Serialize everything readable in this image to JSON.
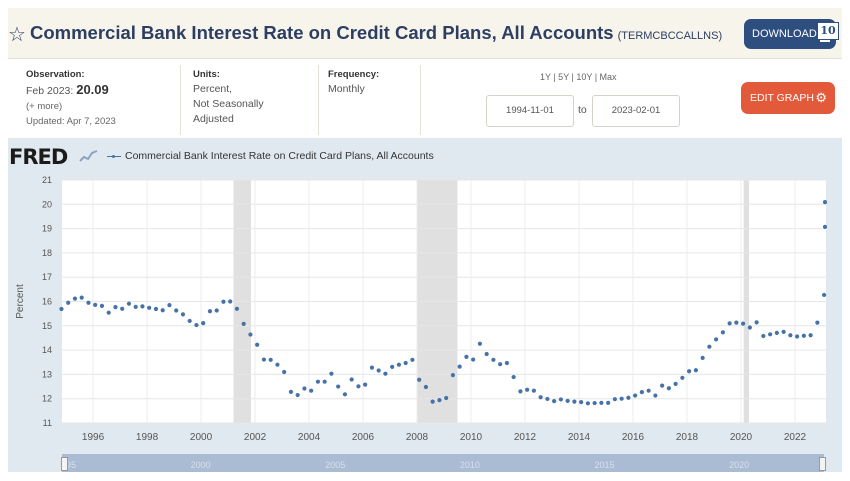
{
  "header": {
    "title": "Commercial Bank Interest Rate on Credit Card Plans, All Accounts",
    "series_id": "(TERMCBCCALLNS)",
    "download_label": "DOWNLOAD",
    "badge": "10"
  },
  "meta": {
    "observation_label": "Observation:",
    "observation_date": "Feb 2023:",
    "observation_value": "20.09",
    "more": "(+ more)",
    "updated": "Updated: Apr 7, 2023",
    "units_label": "Units:",
    "units_lines": [
      "Percent,",
      "Not Seasonally",
      "Adjusted"
    ],
    "frequency_label": "Frequency:",
    "frequency_value": "Monthly",
    "ranges": "1Y | 5Y | 10Y | Max",
    "start_date": "1994-11-01",
    "to_label": "to",
    "end_date": "2023-02-01",
    "edit_label": "EDIT GRAPH"
  },
  "chart": {
    "logo": "FRED",
    "legend": "Commercial Bank Interest Rate on Credit Card Plans, All Accounts"
  },
  "chart_data": {
    "type": "scatter",
    "title": "",
    "ylabel": "Percent",
    "xlabel": "",
    "xlim": [
      1994.85,
      2023.15
    ],
    "ylim": [
      11,
      21
    ],
    "yticks": [
      11,
      12,
      13,
      14,
      15,
      16,
      17,
      18,
      19,
      20,
      21
    ],
    "xticks": [
      "1996",
      "1998",
      "2000",
      "2002",
      "2004",
      "2006",
      "2008",
      "2010",
      "2012",
      "2014",
      "2016",
      "2018",
      "2020",
      "2022"
    ],
    "recessions": [
      [
        2001.2,
        2001.85
      ],
      [
        2008.0,
        2009.5
      ],
      [
        2020.1,
        2020.3
      ]
    ],
    "series": [
      {
        "name": "Commercial Bank Interest Rate on Credit Card Plans, All Accounts",
        "color": "#4572a7",
        "points": [
          [
            1994.83,
            15.69
          ],
          [
            1995.08,
            15.95
          ],
          [
            1995.33,
            16.12
          ],
          [
            1995.58,
            16.16
          ],
          [
            1995.83,
            15.95
          ],
          [
            1996.08,
            15.86
          ],
          [
            1996.33,
            15.82
          ],
          [
            1996.58,
            15.54
          ],
          [
            1996.83,
            15.77
          ],
          [
            1997.08,
            15.7
          ],
          [
            1997.33,
            15.91
          ],
          [
            1997.58,
            15.78
          ],
          [
            1997.83,
            15.8
          ],
          [
            1998.08,
            15.74
          ],
          [
            1998.33,
            15.69
          ],
          [
            1998.58,
            15.64
          ],
          [
            1998.83,
            15.85
          ],
          [
            1999.08,
            15.63
          ],
          [
            1999.33,
            15.47
          ],
          [
            1999.58,
            15.2
          ],
          [
            1999.83,
            15.03
          ],
          [
            2000.08,
            15.11
          ],
          [
            2000.33,
            15.6
          ],
          [
            2000.58,
            15.63
          ],
          [
            2000.83,
            15.99
          ],
          [
            2001.08,
            16.0
          ],
          [
            2001.33,
            15.7
          ],
          [
            2001.58,
            15.08
          ],
          [
            2001.83,
            14.64
          ],
          [
            2002.08,
            14.22
          ],
          [
            2002.33,
            13.61
          ],
          [
            2002.58,
            13.6
          ],
          [
            2002.83,
            13.4
          ],
          [
            2003.08,
            13.1
          ],
          [
            2003.33,
            12.28
          ],
          [
            2003.58,
            12.15
          ],
          [
            2003.83,
            12.42
          ],
          [
            2004.08,
            12.33
          ],
          [
            2004.33,
            12.7
          ],
          [
            2004.58,
            12.7
          ],
          [
            2004.83,
            13.03
          ],
          [
            2005.08,
            12.5
          ],
          [
            2005.33,
            12.18
          ],
          [
            2005.58,
            12.79
          ],
          [
            2005.83,
            12.51
          ],
          [
            2006.08,
            12.58
          ],
          [
            2006.33,
            13.28
          ],
          [
            2006.58,
            13.16
          ],
          [
            2006.83,
            13.03
          ],
          [
            2007.08,
            13.31
          ],
          [
            2007.33,
            13.4
          ],
          [
            2007.58,
            13.47
          ],
          [
            2007.83,
            13.6
          ],
          [
            2008.08,
            12.78
          ],
          [
            2008.33,
            12.48
          ],
          [
            2008.58,
            11.88
          ],
          [
            2008.83,
            11.94
          ],
          [
            2009.08,
            12.03
          ],
          [
            2009.33,
            12.97
          ],
          [
            2009.58,
            13.32
          ],
          [
            2009.83,
            13.72
          ],
          [
            2010.08,
            13.61
          ],
          [
            2010.33,
            14.26
          ],
          [
            2010.58,
            13.84
          ],
          [
            2010.83,
            13.6
          ],
          [
            2011.08,
            13.42
          ],
          [
            2011.33,
            13.47
          ],
          [
            2011.58,
            12.89
          ],
          [
            2011.83,
            12.3
          ],
          [
            2012.08,
            12.37
          ],
          [
            2012.33,
            12.33
          ],
          [
            2012.58,
            12.06
          ],
          [
            2012.83,
            11.99
          ],
          [
            2013.08,
            11.9
          ],
          [
            2013.33,
            11.97
          ],
          [
            2013.58,
            11.91
          ],
          [
            2013.83,
            11.88
          ],
          [
            2014.08,
            11.86
          ],
          [
            2014.33,
            11.81
          ],
          [
            2014.58,
            11.82
          ],
          [
            2014.83,
            11.83
          ],
          [
            2015.08,
            11.83
          ],
          [
            2015.33,
            11.98
          ],
          [
            2015.58,
            12.0
          ],
          [
            2015.83,
            12.04
          ],
          [
            2016.08,
            12.13
          ],
          [
            2016.33,
            12.27
          ],
          [
            2016.58,
            12.33
          ],
          [
            2016.83,
            12.13
          ],
          [
            2017.08,
            12.54
          ],
          [
            2017.33,
            12.43
          ],
          [
            2017.58,
            12.61
          ],
          [
            2017.83,
            12.86
          ],
          [
            2018.08,
            13.13
          ],
          [
            2018.33,
            13.17
          ],
          [
            2018.58,
            13.68
          ],
          [
            2018.83,
            14.14
          ],
          [
            2019.08,
            14.44
          ],
          [
            2019.33,
            14.73
          ],
          [
            2019.58,
            15.1
          ],
          [
            2019.83,
            15.13
          ],
          [
            2020.08,
            15.09
          ],
          [
            2020.33,
            14.93
          ],
          [
            2020.58,
            15.14
          ],
          [
            2020.83,
            14.58
          ],
          [
            2021.08,
            14.65
          ],
          [
            2021.33,
            14.71
          ],
          [
            2021.58,
            14.75
          ],
          [
            2021.83,
            14.61
          ],
          [
            2022.08,
            14.56
          ],
          [
            2022.33,
            14.59
          ],
          [
            2022.58,
            14.61
          ],
          [
            2022.83,
            15.13
          ],
          [
            2023.08,
            16.27
          ],
          [
            2023.33,
            19.07
          ],
          [
            2023.58,
            20.09
          ]
        ]
      }
    ],
    "slider_labels": [
      "1995",
      "2000",
      "2005",
      "2010",
      "2015",
      "2020"
    ],
    "grid": true
  }
}
